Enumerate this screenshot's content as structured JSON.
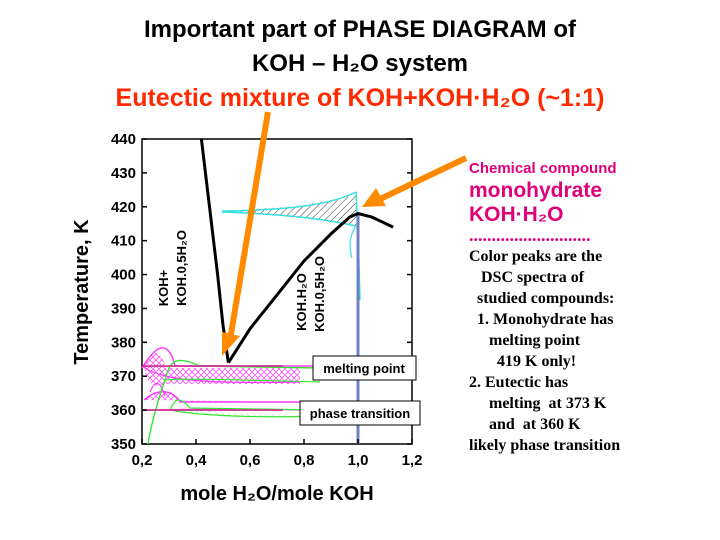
{
  "title": {
    "line1": "Important part of  PHASE  DIAGRAM      of",
    "line2": "KOH – H₂O system",
    "line3": "Eutectic mixture of KOH+KOH·H₂O (~1:1)"
  },
  "chart_data": {
    "type": "phase-diagram",
    "xlabel": "mole H₂O/mole KOH",
    "ylabel": "Temperature, K",
    "xlim": [
      0.2,
      1.2
    ],
    "ylim": [
      350,
      440
    ],
    "xticks": [
      "0,2",
      "0,4",
      "0,6",
      "0,8",
      "1,0",
      "1,2"
    ],
    "yticks": [
      "350",
      "360",
      "370",
      "380",
      "390",
      "400",
      "410",
      "420",
      "430",
      "440"
    ],
    "liquidus_left": [
      [
        0.42,
        440
      ],
      [
        0.45,
        420
      ],
      [
        0.48,
        400
      ],
      [
        0.5,
        385
      ],
      [
        0.52,
        374
      ]
    ],
    "liquidus_right": [
      [
        0.52,
        374
      ],
      [
        0.6,
        384
      ],
      [
        0.7,
        394
      ],
      [
        0.8,
        404
      ],
      [
        0.9,
        412
      ],
      [
        0.97,
        417
      ],
      [
        1.0,
        418
      ],
      [
        1.05,
        417
      ],
      [
        1.13,
        414
      ]
    ],
    "monohydrate_line_x": 1.0,
    "eutectic_temperature": 373,
    "transition_temperature": 360,
    "region_labels": [
      {
        "line1": "KOH+",
        "line2": "KOH.0,5H₂O"
      },
      {
        "line1": "KOH.H₂O",
        "line2": "KOH.0,5H₂O"
      }
    ],
    "annotations": {
      "melting_point": "melting point",
      "phase_transition": "phase transition"
    },
    "colors": {
      "liquidus": "#000000",
      "monohydrate_line": "#6f7fc4",
      "cyan_peak": "#34e0e0",
      "magenta_peaks": "#ff3aff",
      "green_peaks": "#33e633",
      "arrow": "#ff8a00",
      "guide_lines": "#cc2a8a"
    }
  },
  "sidebar": {
    "compound_label": "Chemical compound",
    "compound_name": "monohydrate",
    "compound_formula": "KOH·H₂O",
    "dots": "...........................",
    "notes": [
      "Color peaks are the",
      "   DSC spectra of",
      "  studied compounds:",
      "  1. Monohydrate has",
      "     melting point",
      "       419 K only!",
      "2. Eutectic has",
      "     melting  at 373 K",
      "     and  at 360 K",
      "likely phase transition"
    ]
  }
}
